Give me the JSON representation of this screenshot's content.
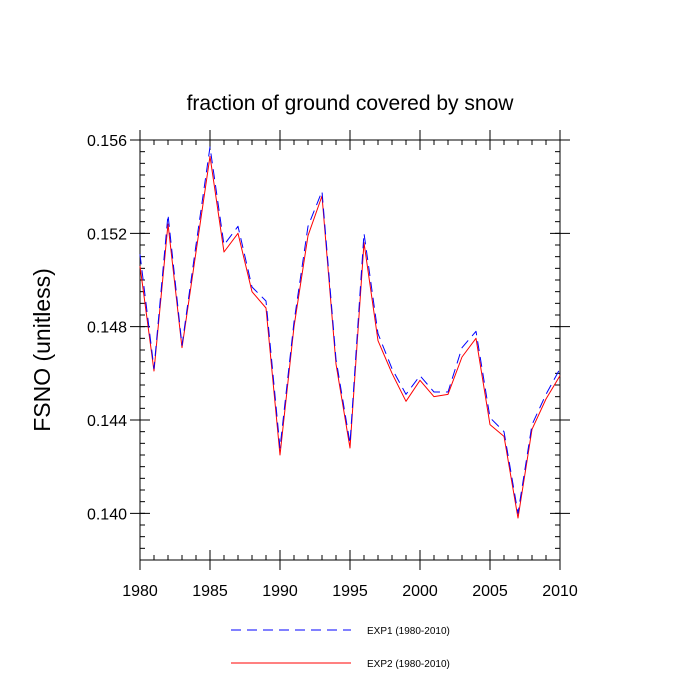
{
  "chart_data": {
    "type": "line",
    "title": "fraction of ground covered by snow",
    "ylabel": "FSNO  (unitless)",
    "xlabel": "",
    "xlim": [
      1980,
      2010
    ],
    "ylim": [
      0.138,
      0.156
    ],
    "x_ticks": [
      "1980",
      "1985",
      "1990",
      "1995",
      "2000",
      "2005",
      "2010"
    ],
    "y_ticks": [
      "0.140",
      "0.144",
      "0.148",
      "0.152",
      "0.156"
    ],
    "x": [
      1980,
      1981,
      1982,
      1983,
      1984,
      1985,
      1986,
      1987,
      1988,
      1989,
      1990,
      1991,
      1992,
      1993,
      1994,
      1995,
      1996,
      1997,
      1998,
      1999,
      2000,
      2001,
      2002,
      2003,
      2004,
      2005,
      2006,
      2007,
      2008,
      2009,
      2010
    ],
    "series": [
      {
        "name": "EXP1 (1980-2010)",
        "color": "#0000ff",
        "dash": "dashed",
        "values": [
          0.1511,
          0.1462,
          0.1528,
          0.1472,
          0.1515,
          0.1557,
          0.1515,
          0.1523,
          0.1497,
          0.1491,
          0.1428,
          0.1482,
          0.1523,
          0.1538,
          0.1466,
          0.143,
          0.152,
          0.1477,
          0.1462,
          0.1451,
          0.1459,
          0.1452,
          0.1452,
          0.1471,
          0.1478,
          0.1441,
          0.1435,
          0.14,
          0.1438,
          0.1451,
          0.1462
        ]
      },
      {
        "name": "EXP2 (1980-2010)",
        "color": "#ff0000",
        "dash": "solid",
        "values": [
          0.1506,
          0.1461,
          0.1524,
          0.1471,
          0.1512,
          0.1553,
          0.1512,
          0.152,
          0.1495,
          0.1488,
          0.1425,
          0.148,
          0.1519,
          0.1536,
          0.1464,
          0.1428,
          0.1516,
          0.1474,
          0.146,
          0.1448,
          0.1457,
          0.145,
          0.1451,
          0.1467,
          0.1475,
          0.1438,
          0.1433,
          0.1398,
          0.1436,
          0.1449,
          0.1459
        ]
      }
    ],
    "legend_position": "bottom-center",
    "grid": false
  }
}
